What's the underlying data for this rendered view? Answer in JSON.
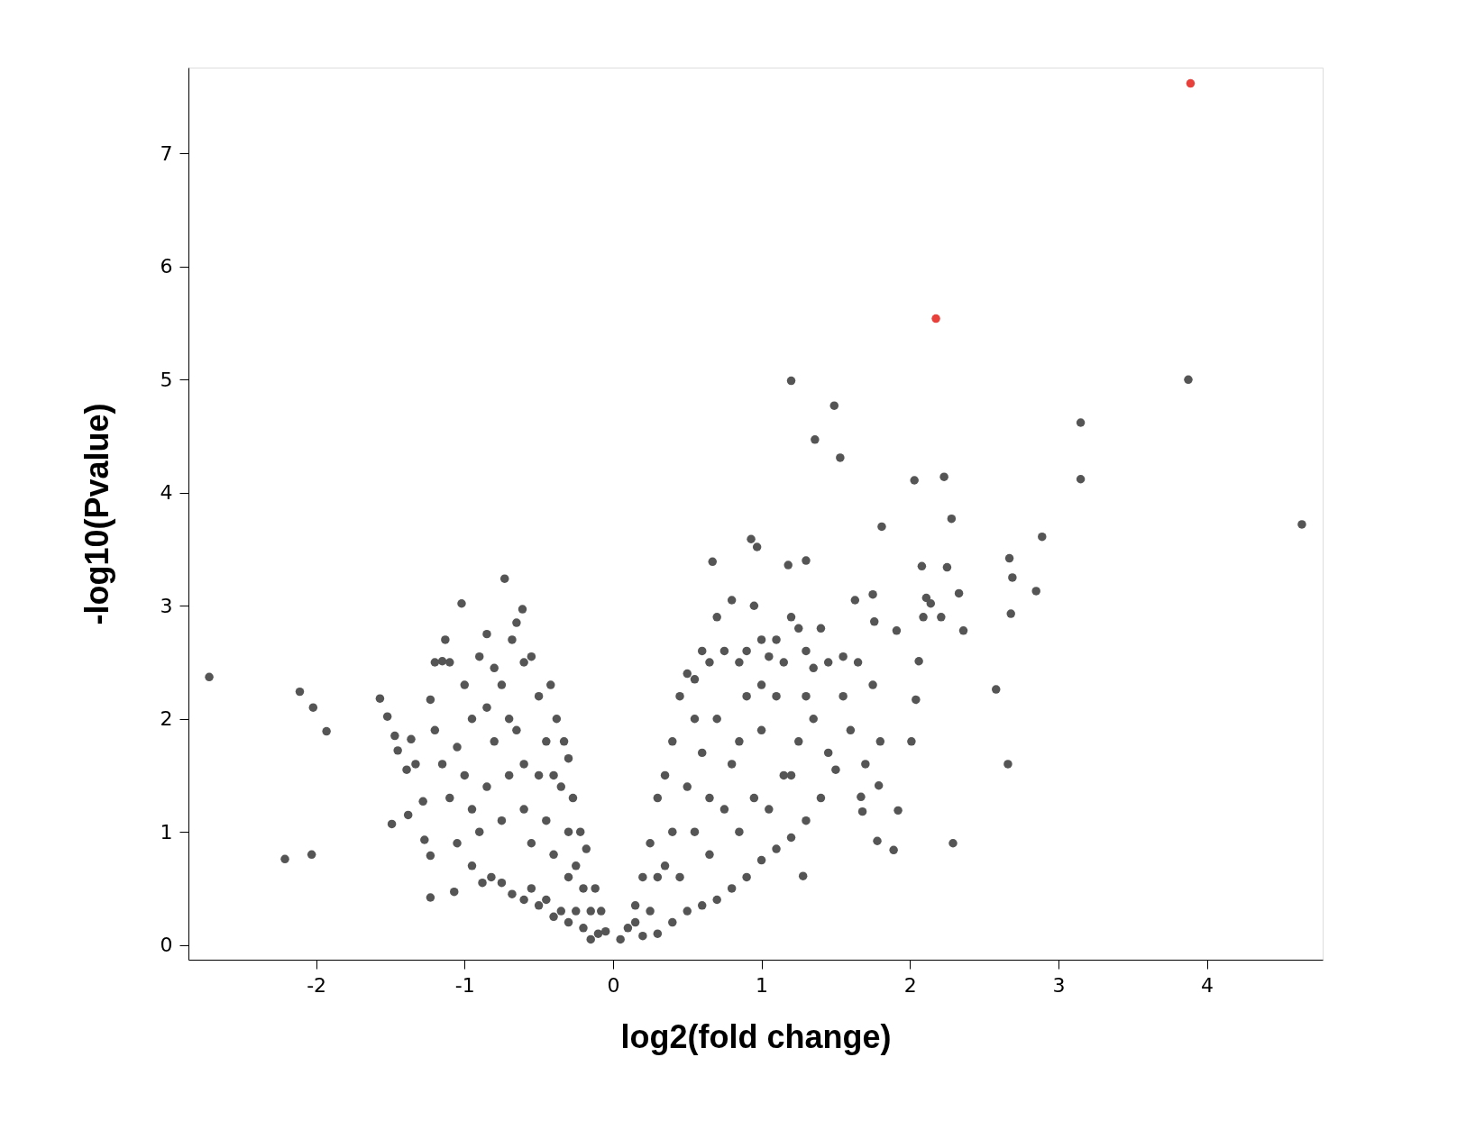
{
  "chart_data": {
    "type": "scatter",
    "xlabel": "log2(fold change)",
    "ylabel": "-log10(Pvalue)",
    "xlim": [
      -2.86,
      4.78
    ],
    "ylim": [
      -0.13,
      7.76
    ],
    "xticks": [
      -2,
      -1,
      0,
      1,
      2,
      3,
      4
    ],
    "yticks": [
      0,
      1,
      2,
      3,
      4,
      5,
      6,
      7
    ],
    "grid": false,
    "series": [
      {
        "color": "#555555",
        "x": [
          -2.72,
          -2.11,
          -2.02,
          -1.93,
          -2.21,
          -2.03,
          -1.57,
          -1.52,
          -1.47,
          -1.45,
          -1.36,
          -1.39,
          -1.49,
          -1.38,
          -1.33,
          -1.28,
          -1.27,
          -1.23,
          -1.23,
          -1.07,
          -1.02,
          -0.73,
          -0.61,
          -1.13,
          -1.15,
          -1.23,
          -1.0,
          -0.95,
          -0.9,
          -0.85,
          -0.8,
          -0.75,
          -0.68,
          -0.65,
          -0.6,
          -0.55,
          -0.5,
          -0.42,
          -0.38,
          -0.33,
          -0.3,
          -0.27,
          -0.22,
          -0.18,
          -0.12,
          -0.08,
          -0.05,
          -0.15,
          -0.2,
          -0.25,
          -0.3,
          -0.35,
          -0.4,
          -0.45,
          -0.5,
          -0.55,
          -0.6,
          -0.68,
          -0.75,
          -0.82,
          -0.88,
          -0.95,
          -1.05,
          -1.1,
          -1.15,
          -1.05,
          -1.0,
          -0.95,
          -0.9,
          -0.85,
          -0.8,
          -0.75,
          -0.7,
          -0.65,
          -0.6,
          -0.55,
          -0.5,
          -0.45,
          -0.45,
          -0.4,
          -0.35,
          -0.3,
          -0.25,
          -0.2,
          -0.15,
          -1.2,
          -1.2,
          -1.1,
          -0.85,
          -0.7,
          -0.6,
          -0.4,
          -0.3,
          -0.1,
          0.05,
          0.1,
          0.15,
          0.2,
          0.25,
          0.3,
          0.35,
          0.4,
          0.45,
          0.5,
          0.55,
          0.6,
          0.65,
          0.7,
          0.75,
          0.8,
          0.85,
          0.9,
          0.95,
          1.0,
          1.05,
          1.1,
          1.15,
          1.2,
          1.25,
          1.3,
          1.35,
          1.4,
          1.45,
          1.55,
          1.65,
          1.75,
          1.8,
          1.7,
          1.6,
          1.5,
          1.4,
          1.3,
          1.2,
          1.1,
          1.0,
          0.9,
          0.8,
          0.7,
          0.6,
          0.5,
          0.4,
          0.3,
          0.2,
          0.15,
          0.25,
          0.35,
          0.45,
          0.55,
          0.65,
          0.75,
          0.85,
          0.95,
          1.05,
          1.15,
          1.25,
          1.35,
          1.45,
          1.55,
          0.4,
          0.5,
          0.6,
          0.7,
          0.8,
          0.9,
          1.0,
          1.1,
          1.2,
          1.3,
          0.3,
          0.55,
          0.65,
          0.85,
          1.0,
          1.2,
          1.49,
          1.36,
          1.53,
          3.875,
          3.15,
          3.15,
          2.03,
          2.23,
          2.28,
          1.81,
          4.64,
          2.89,
          0.93,
          0.97,
          0.67,
          1.18,
          1.3,
          2.08,
          2.25,
          2.67,
          2.69,
          2.33,
          2.85,
          2.11,
          2.14,
          1.75,
          1.63,
          2.09,
          2.21,
          2.68,
          2.36,
          1.91,
          1.76,
          2.06,
          2.58,
          2.04,
          2.01,
          2.66,
          1.79,
          1.92,
          2.29,
          1.89,
          1.78,
          1.28,
          1.68,
          1.67
        ],
        "values": [
          2.37,
          2.24,
          2.1,
          1.89,
          0.76,
          0.8,
          2.18,
          2.02,
          1.85,
          1.72,
          1.82,
          1.55,
          1.07,
          1.15,
          1.6,
          1.27,
          0.93,
          0.79,
          0.42,
          0.47,
          3.02,
          3.24,
          2.97,
          2.7,
          2.51,
          2.17,
          2.3,
          2.0,
          2.55,
          2.75,
          2.45,
          2.3,
          2.7,
          2.85,
          2.5,
          2.55,
          2.2,
          2.3,
          2.0,
          1.8,
          1.65,
          1.3,
          1.0,
          0.85,
          0.5,
          0.3,
          0.12,
          0.05,
          0.15,
          0.3,
          0.2,
          0.3,
          0.25,
          0.4,
          0.35,
          0.5,
          0.4,
          0.45,
          0.55,
          0.6,
          0.55,
          0.7,
          0.9,
          1.3,
          1.6,
          1.75,
          1.5,
          1.2,
          1.0,
          1.4,
          1.8,
          1.1,
          1.5,
          1.9,
          1.2,
          0.9,
          1.5,
          1.8,
          1.1,
          0.8,
          1.4,
          1.0,
          0.7,
          0.5,
          0.3,
          1.9,
          2.5,
          2.5,
          2.1,
          2.0,
          1.6,
          1.5,
          0.6,
          0.1,
          0.05,
          0.15,
          0.35,
          0.6,
          0.9,
          1.3,
          1.5,
          1.8,
          2.2,
          2.4,
          2.35,
          2.6,
          2.5,
          2.9,
          2.6,
          3.05,
          2.5,
          2.6,
          3.0,
          2.7,
          2.55,
          2.7,
          2.5,
          2.9,
          2.8,
          2.6,
          2.45,
          2.8,
          2.5,
          2.55,
          2.5,
          2.3,
          1.8,
          1.6,
          1.9,
          1.55,
          1.3,
          1.1,
          0.95,
          0.85,
          0.75,
          0.6,
          0.5,
          0.4,
          0.35,
          0.3,
          0.2,
          0.1,
          0.08,
          0.2,
          0.3,
          0.7,
          0.6,
          1.0,
          0.8,
          1.2,
          1.0,
          1.3,
          1.2,
          1.5,
          1.8,
          2.0,
          1.7,
          2.2,
          1.0,
          1.4,
          1.7,
          2.0,
          1.6,
          2.2,
          1.9,
          2.2,
          1.5,
          2.2,
          0.6,
          2.0,
          1.3,
          1.8,
          2.3,
          4.99,
          4.77,
          4.47,
          4.31,
          5.0,
          4.62,
          4.12,
          4.11,
          4.14,
          3.77,
          3.7,
          3.72,
          3.61,
          3.59,
          3.52,
          3.39,
          3.36,
          3.4,
          3.35,
          3.34,
          3.42,
          3.25,
          3.11,
          3.13,
          3.07,
          3.02,
          3.1,
          3.05,
          2.9,
          2.9,
          2.93,
          2.78,
          2.78,
          2.86,
          2.51,
          2.26,
          2.17,
          1.8,
          1.6,
          1.41,
          1.19,
          0.9,
          0.84,
          0.92,
          0.61,
          1.18,
          1.31
        ]
      },
      {
        "color": "#e8403a",
        "x": [
          3.89,
          2.175
        ],
        "values": [
          7.62,
          5.54
        ]
      }
    ]
  }
}
